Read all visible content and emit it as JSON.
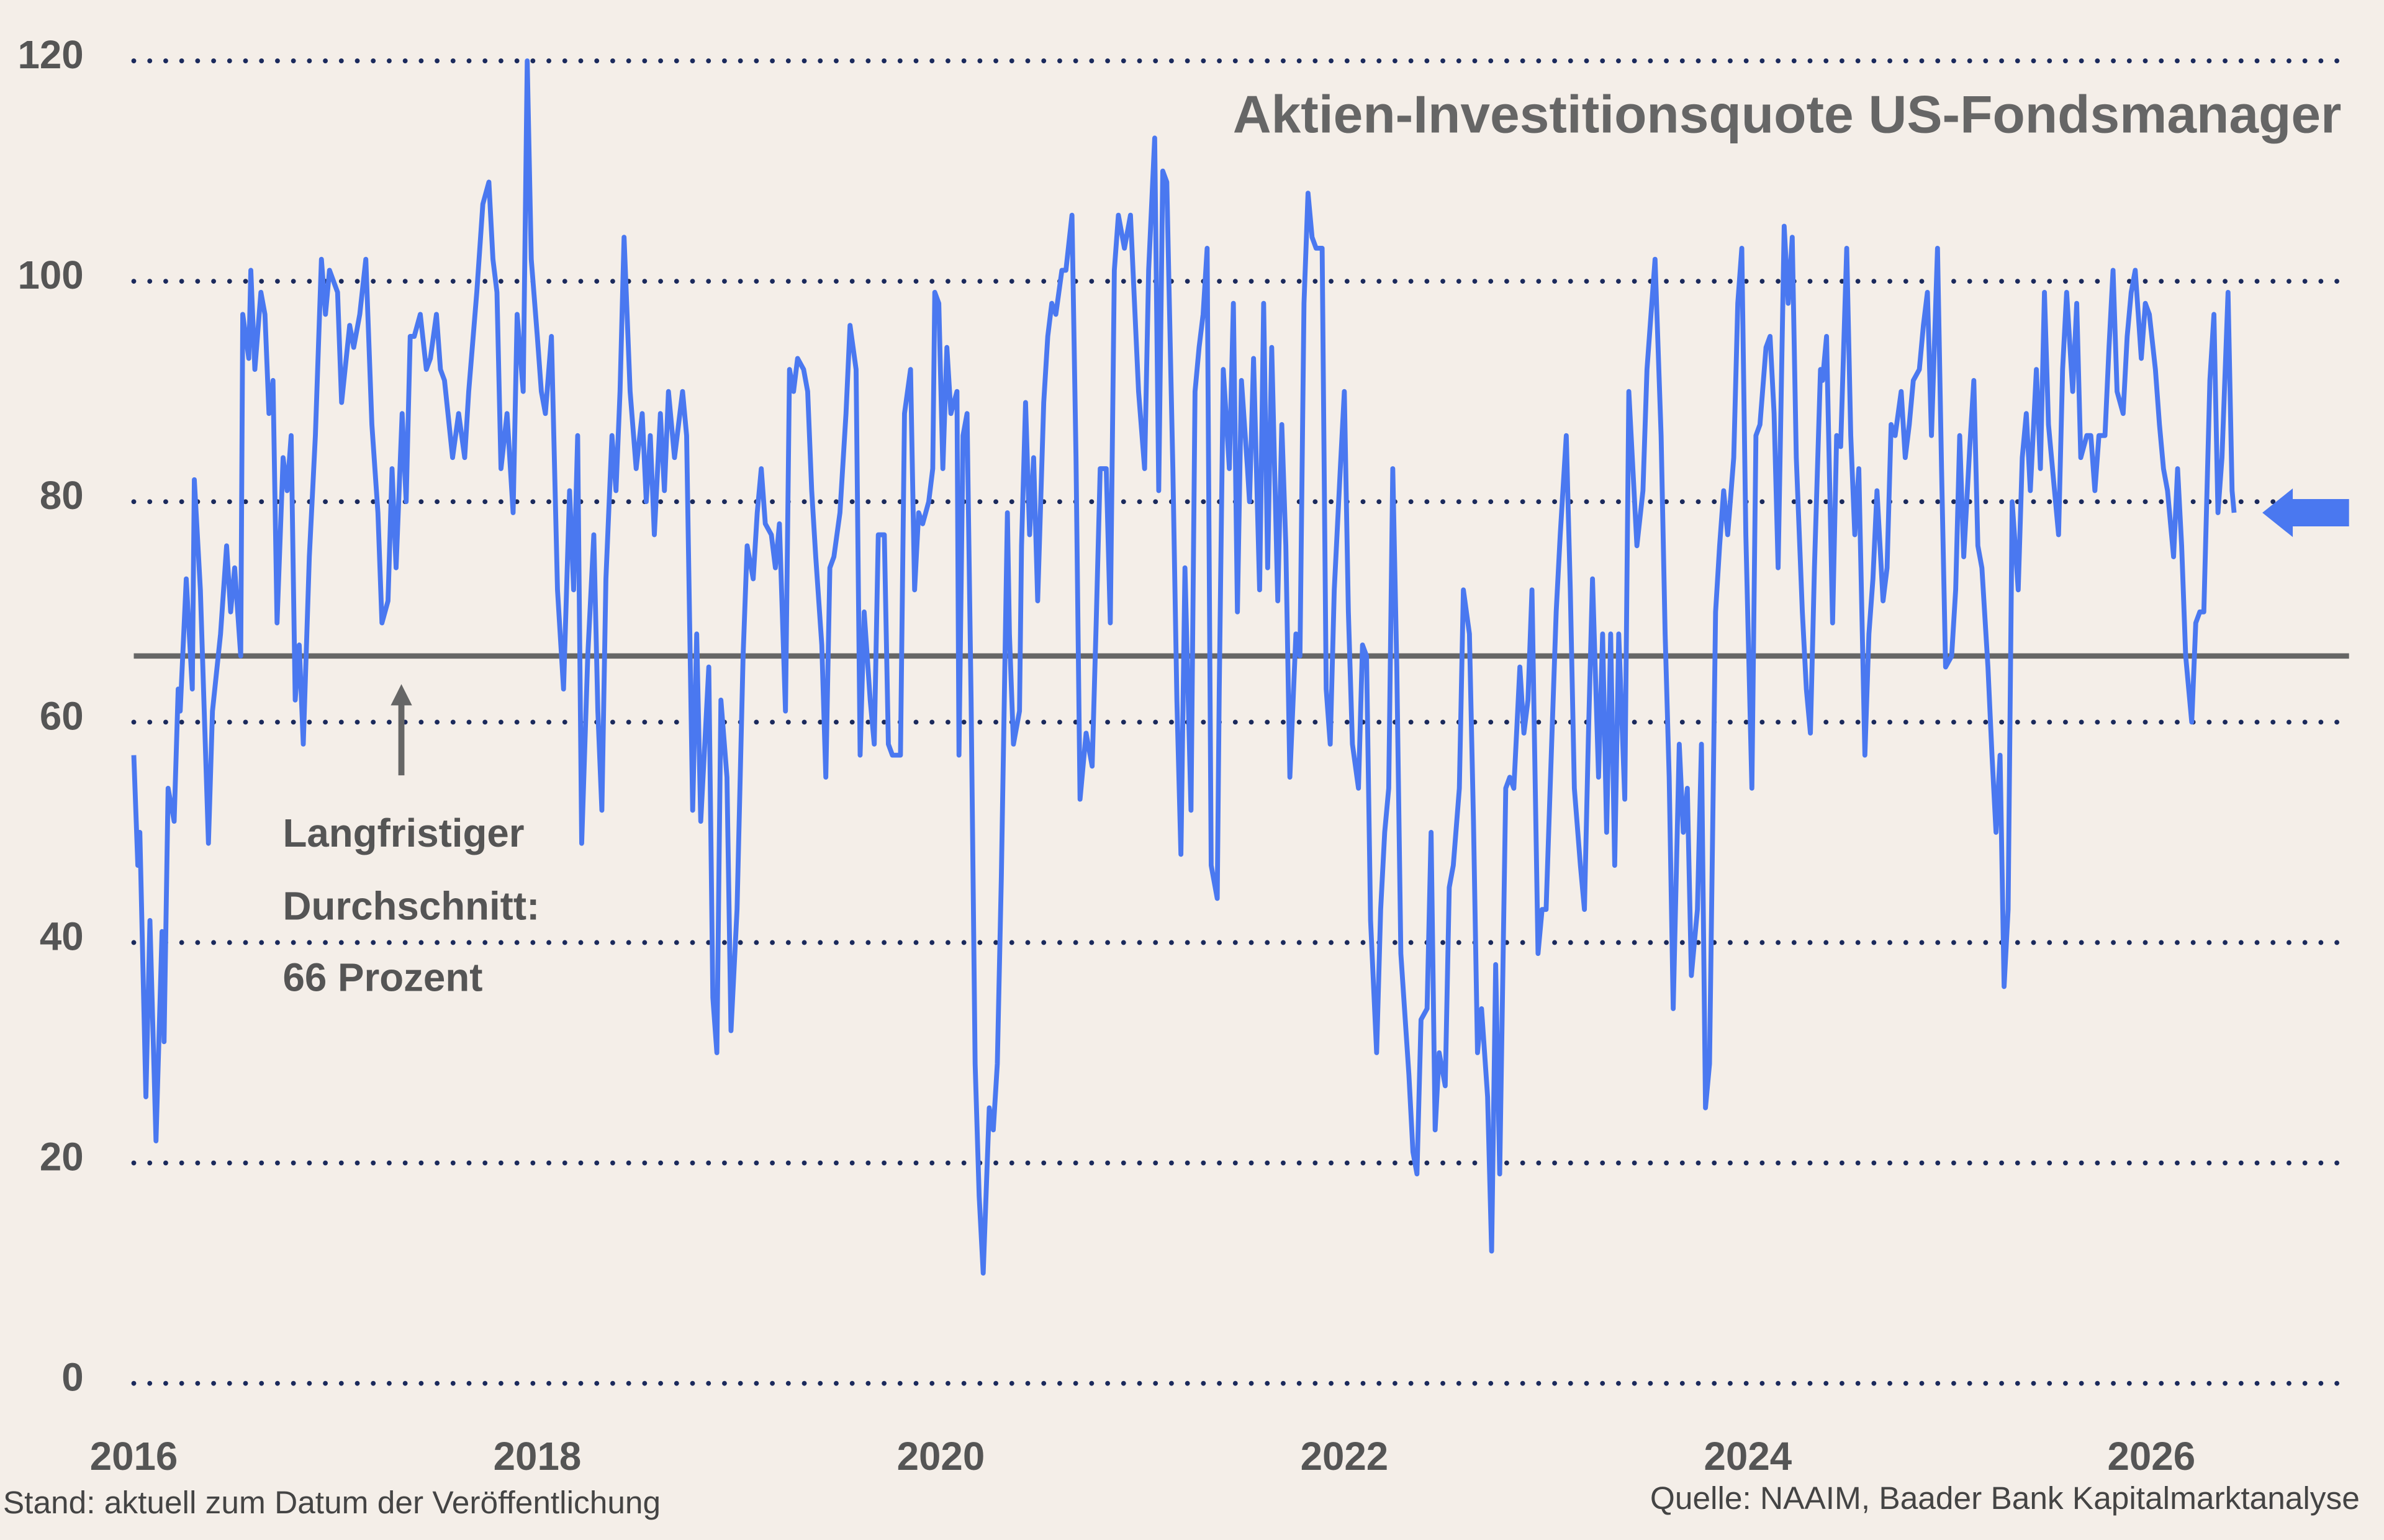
{
  "chart_data": {
    "type": "line",
    "title": "Aktien-Investitionsquote US-Fondsmanager",
    "color": "#4a78f0",
    "grid": true,
    "xlim": [
      2016,
      2027
    ],
    "xticks": [
      2016,
      2018,
      2020,
      2022,
      2024,
      2026
    ],
    "ylim": [
      0,
      120
    ],
    "yticks": [
      0,
      20,
      40,
      60,
      80,
      100,
      120
    ],
    "average": 66,
    "annotation": [
      "Langfristiger",
      "Durchschnitt:",
      "66 Prozent"
    ],
    "note": "Stand: aktuell zum Datum der Veröffentlichung",
    "source": "Quelle: NAAIM, Baader Bank Kapitalmarktanalyse",
    "x": [
      2016.0,
      2016.02,
      2016.03,
      2016.06,
      2016.08,
      2016.11,
      2016.14,
      2016.15,
      2016.17,
      2016.2,
      2016.22,
      2016.23,
      2016.26,
      2016.29,
      2016.3,
      2016.33,
      2016.37,
      2016.39,
      2016.43,
      2016.46,
      2016.48,
      2016.5,
      2016.53,
      2016.54,
      2016.57,
      2016.58,
      2016.6,
      2016.63,
      2016.65,
      2016.67,
      2016.69,
      2016.71,
      2016.74,
      2016.76,
      2016.78,
      2016.8,
      2016.82,
      2016.84,
      2016.87,
      2016.9,
      2016.93,
      2016.95,
      2016.97,
      2017.01,
      2017.03,
      2017.07,
      2017.09,
      2017.12,
      2017.15,
      2017.18,
      2017.21,
      2017.23,
      2017.26,
      2017.28,
      2017.3,
      2017.33,
      2017.35,
      2017.37,
      2017.39,
      2017.42,
      2017.45,
      2017.47,
      2017.5,
      2017.52,
      2017.54,
      2017.58,
      2017.61,
      2017.64,
      2017.66,
      2017.7,
      2017.73,
      2017.76,
      2017.78,
      2017.8,
      2017.82,
      2017.85,
      2017.88,
      2017.9,
      2017.93,
      2017.95,
      2017.97,
      2018.0,
      2018.02,
      2018.04,
      2018.07,
      2018.1,
      2018.13,
      2018.16,
      2018.18,
      2018.2,
      2018.22,
      2018.25,
      2018.28,
      2018.3,
      2018.32,
      2018.34,
      2018.37,
      2018.39,
      2018.41,
      2018.43,
      2018.46,
      2018.49,
      2018.52,
      2018.54,
      2018.56,
      2018.58,
      2018.61,
      2018.63,
      2018.65,
      2018.68,
      2018.7,
      2018.72,
      2018.74,
      2018.77,
      2018.79,
      2018.81,
      2018.85,
      2018.87,
      2018.89,
      2018.91,
      2018.94,
      2018.96,
      2018.99,
      2019.02,
      2019.04,
      2019.07,
      2019.09,
      2019.11,
      2019.13,
      2019.16,
      2019.18,
      2019.2,
      2019.23,
      2019.25,
      2019.27,
      2019.29,
      2019.32,
      2019.34,
      2019.36,
      2019.38,
      2019.41,
      2019.43,
      2019.45,
      2019.47,
      2019.5,
      2019.53,
      2019.55,
      2019.58,
      2019.6,
      2019.62,
      2019.65,
      2019.67,
      2019.69,
      2019.72,
      2019.74,
      2019.76,
      2019.8,
      2019.82,
      2019.85,
      2019.87,
      2019.89,
      2019.91,
      2019.94,
      2019.96,
      2019.97,
      2019.99,
      2020.01,
      2020.03,
      2020.05,
      2020.08,
      2020.09,
      2020.11,
      2020.13,
      2020.15,
      2020.17,
      2020.19,
      2020.21,
      2020.24,
      2020.26,
      2020.28,
      2020.3,
      2020.33,
      2020.34,
      2020.36,
      2020.39,
      2020.4,
      2020.42,
      2020.44,
      2020.46,
      2020.48,
      2020.51,
      2020.53,
      2020.55,
      2020.57,
      2020.6,
      2020.62,
      2020.65,
      2020.67,
      2020.69,
      2020.72,
      2020.75,
      2020.77,
      2020.79,
      2020.82,
      2020.84,
      2020.86,
      2020.88,
      2020.91,
      2020.94,
      2020.96,
      2020.98,
      2021.01,
      2021.03,
      2021.06,
      2021.08,
      2021.1,
      2021.12,
      2021.15,
      2021.17,
      2021.19,
      2021.21,
      2021.24,
      2021.26,
      2021.28,
      2021.3,
      2021.32,
      2021.34,
      2021.37,
      2021.38,
      2021.4,
      2021.43,
      2021.45,
      2021.47,
      2021.49,
      2021.52,
      2021.53,
      2021.55,
      2021.58,
      2021.6,
      2021.62,
      2021.64,
      2021.67,
      2021.69,
      2021.71,
      2021.73,
      2021.76,
      2021.78,
      2021.8,
      2021.82,
      2021.84,
      2021.86,
      2021.89,
      2021.91,
      2021.93,
      2021.95,
      2021.98,
      2022.0,
      2022.02,
      2022.04,
      2022.07,
      2022.09,
      2022.11,
      2022.13,
      2022.16,
      2022.18,
      2022.2,
      2022.22,
      2022.24,
      2022.26,
      2022.28,
      2022.32,
      2022.34,
      2022.36,
      2022.38,
      2022.41,
      2022.43,
      2022.45,
      2022.47,
      2022.5,
      2022.52,
      2022.54,
      2022.57,
      2022.59,
      2022.62,
      2022.64,
      2022.66,
      2022.68,
      2022.71,
      2022.73,
      2022.75,
      2022.77,
      2022.8,
      2022.82,
      2022.84,
      2022.87,
      2022.89,
      2022.91,
      2022.93,
      2022.96,
      2022.98,
      2023.0,
      2023.02,
      2023.05,
      2023.07,
      2023.1,
      2023.12,
      2023.14,
      2023.17,
      2023.19,
      2023.21,
      2023.23,
      2023.26,
      2023.28,
      2023.3,
      2023.32,
      2023.34,
      2023.36,
      2023.39,
      2023.41,
      2023.43,
      2023.45,
      2023.48,
      2023.5,
      2023.52,
      2023.54,
      2023.57,
      2023.59,
      2023.61,
      2023.63,
      2023.66,
      2023.68,
      2023.7,
      2023.72,
      2023.75,
      2023.77,
      2023.79,
      2023.81,
      2023.84,
      2023.86,
      2023.88,
      2023.9,
      2023.93,
      2023.95,
      2023.97,
      2023.99,
      2024.02,
      2024.04,
      2024.06,
      2024.09,
      2024.11,
      2024.13,
      2024.15,
      2024.18,
      2024.2,
      2024.22,
      2024.24,
      2024.27,
      2024.29,
      2024.31,
      2024.33,
      2024.36,
      2024.37,
      2024.39,
      2024.42,
      2024.44,
      2024.46,
      2024.49,
      2024.51,
      2024.53,
      2024.55,
      2024.58,
      2024.6,
      2024.62,
      2024.64,
      2024.67,
      2024.69,
      2024.71,
      2024.73,
      2024.76,
      2024.78,
      2024.8,
      2024.82,
      2024.85,
      2024.87,
      2024.89,
      2024.91,
      2024.94,
      2024.96,
      2024.98,
      2025.01,
      2025.03,
      2025.05,
      2025.07,
      2025.1,
      2025.12,
      2025.14,
      2025.16,
      2025.19,
      2025.21,
      2025.23,
      2025.25,
      2025.27,
      2025.29,
      2025.31,
      2025.34,
      2025.36,
      2025.38,
      2025.4,
      2025.43,
      2025.45,
      2025.47,
      2025.49,
      2025.52,
      2025.54,
      2025.56,
      2025.58,
      2025.61,
      2025.63,
      2025.65,
      2025.68,
      2025.7,
      2025.72,
      2025.74,
      2025.77,
      2025.79,
      2025.81,
      2025.83,
      2025.86,
      2025.88,
      2025.9,
      2025.92,
      2025.95,
      2025.97,
      2025.99,
      2026.02,
      2026.04,
      2026.06,
      2026.08,
      2026.11,
      2026.13,
      2026.15,
      2026.17,
      2026.2,
      2026.22,
      2026.24,
      2026.26,
      2026.29,
      2026.31,
      2026.33,
      2026.35,
      2026.38,
      2026.4,
      2026.41
    ],
    "values": [
      57,
      47,
      50,
      26,
      42,
      22,
      41,
      31,
      54,
      51,
      63,
      61,
      73,
      63,
      82,
      72,
      49,
      61,
      68,
      76,
      70,
      74,
      66,
      97,
      93,
      101,
      92,
      99,
      97,
      88,
      91,
      69,
      84,
      81,
      86,
      62,
      67,
      58,
      75,
      86,
      102,
      97,
      101,
      99,
      89,
      96,
      94,
      97,
      102,
      87,
      79,
      69,
      71,
      83,
      74,
      88,
      80,
      95,
      95,
      97,
      92,
      93,
      97,
      92,
      91,
      84,
      88,
      84,
      90,
      99,
      107,
      109,
      102,
      99,
      83,
      88,
      79,
      97,
      90,
      120,
      102,
      95,
      90,
      88,
      95,
      72,
      63,
      81,
      72,
      86,
      49,
      66,
      77,
      61,
      52,
      73,
      86,
      81,
      90,
      104,
      90,
      83,
      88,
      80,
      86,
      77,
      88,
      81,
      90,
      84,
      87,
      90,
      86,
      52,
      68,
      51,
      65,
      35,
      30,
      62,
      55,
      32,
      43,
      66,
      76,
      73,
      79,
      83,
      78,
      77,
      74,
      78,
      61,
      92,
      90,
      93,
      92,
      90,
      81,
      75,
      67,
      55,
      74,
      75,
      79,
      88,
      96,
      92,
      57,
      70,
      62,
      58,
      77,
      77,
      58,
      57,
      57,
      88,
      92,
      72,
      79,
      78,
      80,
      83,
      99,
      98,
      83,
      94,
      88,
      90,
      57,
      86,
      88,
      62,
      29,
      17,
      10,
      25,
      23,
      29,
      46,
      79,
      68,
      58,
      61,
      76,
      89,
      77,
      84,
      71,
      89,
      95,
      98,
      97,
      101,
      101,
      106,
      84,
      53,
      59,
      56,
      69,
      83,
      83,
      69,
      101,
      106,
      103,
      106,
      98,
      90,
      83,
      101,
      113,
      81,
      110,
      109,
      83,
      62,
      48,
      74,
      52,
      90,
      94,
      97,
      103,
      47,
      44,
      63,
      92,
      83,
      98,
      70,
      91,
      83,
      80,
      93,
      72,
      98,
      74,
      94,
      71,
      87,
      76,
      55,
      68,
      66,
      98,
      108,
      104,
      103,
      103,
      63,
      58,
      72,
      83,
      90,
      70,
      58,
      54,
      67,
      66,
      42,
      30,
      43,
      50,
      54,
      83,
      65,
      39,
      28,
      21,
      19,
      33,
      34,
      50,
      23,
      30,
      27,
      45,
      47,
      54,
      72,
      68,
      51,
      30,
      34,
      26,
      12,
      38,
      19,
      54,
      55,
      54,
      65,
      59,
      62,
      72,
      39,
      43,
      43,
      54,
      70,
      77,
      86,
      72,
      54,
      47,
      43,
      59,
      73,
      55,
      68,
      50,
      68,
      47,
      68,
      53,
      90,
      83,
      76,
      81,
      92,
      97,
      102,
      86,
      68,
      55,
      34,
      58,
      50,
      54,
      37,
      43,
      58,
      25,
      29,
      70,
      76,
      81,
      77,
      84,
      98,
      103,
      77,
      54,
      86,
      87,
      94,
      95,
      88,
      74,
      105,
      98,
      104,
      84,
      70,
      63,
      59,
      74,
      92,
      91,
      95,
      69,
      86,
      85,
      103,
      86,
      77,
      83,
      57,
      68,
      73,
      81,
      71,
      74,
      87,
      86,
      90,
      84,
      87,
      91,
      92,
      96,
      99,
      86,
      103,
      83,
      65,
      66,
      72,
      86,
      75,
      85,
      91,
      76,
      74,
      65,
      57,
      50,
      57,
      36,
      43,
      80,
      72,
      84,
      88,
      81,
      92,
      83,
      99,
      87,
      81,
      77,
      92,
      99,
      90,
      98,
      84,
      86,
      86,
      81,
      86,
      86,
      94,
      101,
      90,
      88,
      95,
      99,
      101,
      93,
      98,
      97,
      92,
      87,
      83,
      81,
      75,
      83,
      76,
      66,
      60,
      69,
      70,
      70,
      91,
      97,
      79,
      84,
      99,
      81,
      79
    ]
  }
}
